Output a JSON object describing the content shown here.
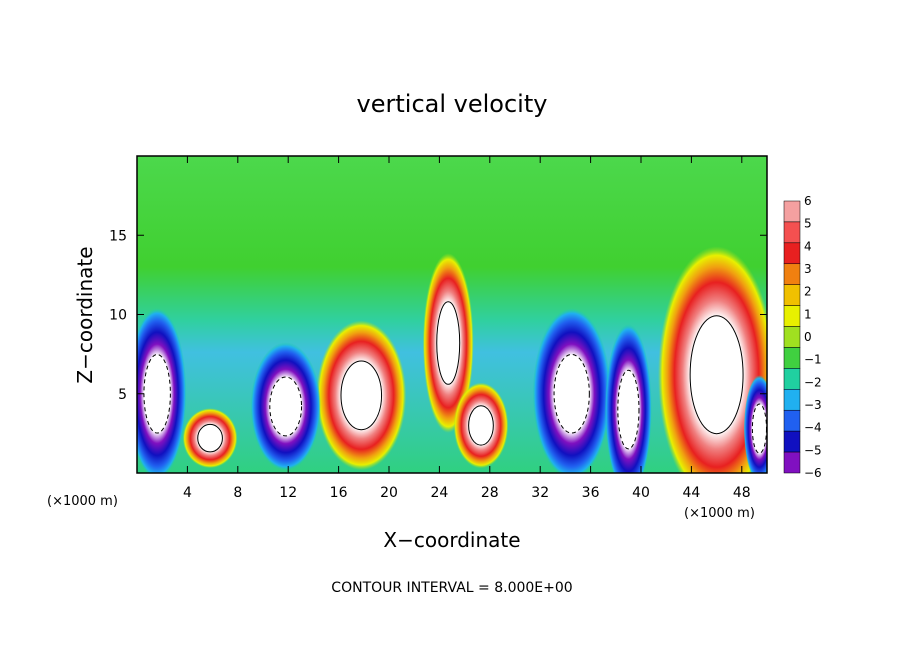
{
  "chart_data": {
    "type": "heatmap",
    "title": "vertical velocity",
    "xlabel": "X−coordinate",
    "ylabel": "Z−coordinate",
    "x_unit": "(×1000 m)",
    "y_unit": "(×1000 m)",
    "xlim": [
      0,
      50
    ],
    "ylim": [
      0,
      20
    ],
    "x_ticks": [
      4,
      8,
      12,
      16,
      20,
      24,
      28,
      32,
      36,
      40,
      44,
      48
    ],
    "y_ticks": [
      5,
      10,
      15
    ],
    "footer": "CONTOUR INTERVAL = 8.000E+00",
    "colorbar": {
      "labels": [
        "6",
        "5",
        "4",
        "3",
        "2",
        "1",
        "0",
        "−1",
        "−2",
        "−3",
        "−4",
        "−5",
        "−6"
      ],
      "colors": [
        "#f4a0a0",
        "#f45050",
        "#e82020",
        "#f08010",
        "#f0c000",
        "#e8f000",
        "#a0e020",
        "#40d040",
        "#20d0a0",
        "#20b0f0",
        "#2060f0",
        "#1010c0",
        "#8010c0"
      ]
    },
    "features": [
      {
        "kind": "updraft",
        "x": 17.8,
        "z": 4.9,
        "rx": 2.3,
        "rz": 3.5
      },
      {
        "kind": "updraft",
        "x": 24.7,
        "z": 8.2,
        "rx": 1.3,
        "rz": 4.2
      },
      {
        "kind": "updraft",
        "x": 27.3,
        "z": 3.0,
        "rx": 1.4,
        "rz": 2.0
      },
      {
        "kind": "updraft",
        "x": 46.0,
        "z": 6.2,
        "rx": 3.0,
        "rz": 6.0
      },
      {
        "kind": "updraft",
        "x": 5.8,
        "z": 2.2,
        "rx": 1.4,
        "rz": 1.4
      },
      {
        "kind": "downdraft",
        "x": 1.6,
        "z": 5.0,
        "rx": 1.5,
        "rz": 4.0
      },
      {
        "kind": "downdraft",
        "x": 11.8,
        "z": 4.2,
        "rx": 1.8,
        "rz": 3.0
      },
      {
        "kind": "downdraft",
        "x": 34.5,
        "z": 5.0,
        "rx": 2.0,
        "rz": 4.0
      },
      {
        "kind": "downdraft",
        "x": 39.0,
        "z": 4.0,
        "rx": 1.2,
        "rz": 4.0
      },
      {
        "kind": "downdraft",
        "x": 49.4,
        "z": 2.8,
        "rx": 0.8,
        "rz": 2.5
      }
    ]
  }
}
